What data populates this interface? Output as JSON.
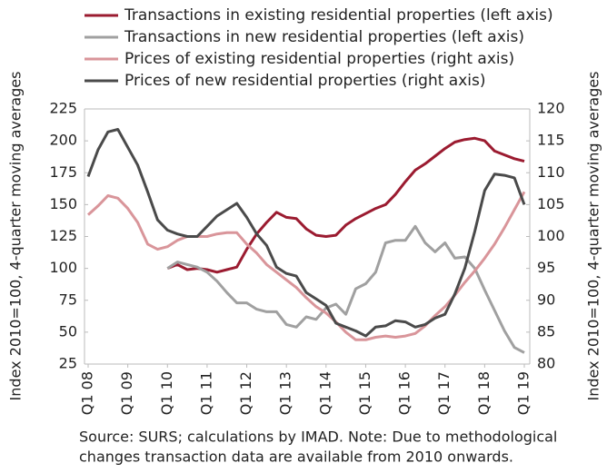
{
  "chart_data": {
    "type": "line",
    "y_label": "Index 2010=100, 4-quarter moving averages",
    "y2_label": "Index 2010=100, 4-quarter moving averages",
    "source": [
      "Source: SURS; calculations by IMAD. Note: Due to methodological",
      "changes transaction data are available from 2010 onwards."
    ],
    "categories": [
      "Q1 08",
      null,
      null,
      null,
      "Q1 09",
      null,
      null,
      null,
      "Q1 10",
      null,
      null,
      null,
      "Q1 11",
      null,
      null,
      null,
      "Q1 12",
      null,
      null,
      null,
      "Q1 13",
      null,
      null,
      null,
      "Q1 14",
      null,
      null,
      null,
      "Q1 15",
      null,
      null,
      null,
      "Q1 16",
      null,
      null,
      null,
      "Q1 17",
      null,
      null,
      null,
      "Q1 18",
      null,
      null,
      null,
      "Q1 19"
    ],
    "ylim": [
      25,
      225
    ],
    "yticks": [
      25,
      50,
      75,
      100,
      125,
      150,
      175,
      200,
      225
    ],
    "y2lim": [
      80,
      120
    ],
    "y2ticks": [
      80,
      85,
      90,
      95,
      100,
      105,
      110,
      115,
      120
    ],
    "grid": false,
    "series": [
      {
        "name": "Transactions in existing residential properties (left axis)",
        "color": "#9b1b30",
        "values": [
          null,
          null,
          null,
          null,
          null,
          null,
          null,
          null,
          100,
          103,
          99,
          100,
          99,
          97,
          99,
          101,
          115,
          127,
          136,
          144,
          140,
          139,
          131,
          126,
          125,
          126,
          134,
          139,
          143,
          147,
          150,
          158,
          168,
          177,
          182,
          188,
          194,
          199,
          201,
          202,
          200,
          192,
          189,
          186,
          184
        ]
      },
      {
        "name": "Transactions in new residential properties (left axis)",
        "color": "#a0a0a0",
        "values": [
          null,
          null,
          null,
          null,
          null,
          null,
          null,
          null,
          100,
          105,
          103,
          101,
          97,
          90,
          81,
          73,
          73,
          68,
          66,
          66,
          56,
          54,
          62,
          60,
          69,
          72,
          64,
          84,
          88,
          97,
          120,
          122,
          122,
          133,
          120,
          113,
          120,
          108,
          109,
          100,
          83,
          67,
          51,
          38,
          34
        ]
      },
      {
        "name": "Prices of existing residential properties (right axis)",
        "color": "#d9959a",
        "axis": "y2",
        "values": [
          103.4,
          104.8,
          106.4,
          106,
          104.4,
          102.2,
          98.8,
          98,
          98.4,
          99.4,
          100,
          100,
          100,
          100.4,
          100.6,
          100.6,
          98.8,
          97.4,
          95.6,
          94.4,
          93.2,
          92,
          90.4,
          89,
          88,
          86.6,
          85,
          83.8,
          83.8,
          84.2,
          84.4,
          84.2,
          84.4,
          84.8,
          86,
          87.6,
          89,
          90.8,
          92.8,
          94.6,
          96.6,
          98.8,
          101.4,
          104.2,
          107
        ]
      },
      {
        "name": "Prices of new residential properties (right axis)",
        "color": "#4a4a4a",
        "axis": "y2",
        "values": [
          109.4,
          113.6,
          116.4,
          116.8,
          114,
          111.2,
          107,
          102.6,
          101,
          100.4,
          100,
          100,
          101.6,
          103.2,
          104.2,
          105.2,
          103,
          100.4,
          98.6,
          95.2,
          94.2,
          93.8,
          91.2,
          90.2,
          89.2,
          86.4,
          85.8,
          85.2,
          84.4,
          85.8,
          86,
          86.8,
          86.6,
          85.8,
          86.2,
          87.2,
          87.8,
          91,
          95,
          100.8,
          107.2,
          109.8,
          109.6,
          109.2,
          105
        ]
      }
    ]
  }
}
